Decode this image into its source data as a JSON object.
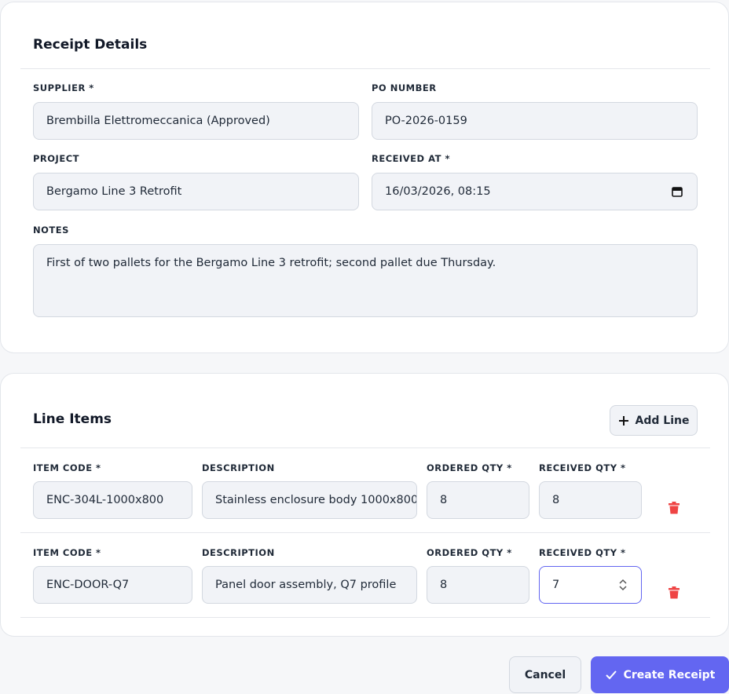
{
  "receipt_details": {
    "title": "Receipt Details",
    "fields": [
      {
        "label": "SUPPLIER *",
        "value": "Brembilla Elettromeccanica (Approved)"
      },
      {
        "label": "PO NUMBER",
        "value": "PO-2026-0159"
      },
      {
        "label": "PROJECT",
        "value": "Bergamo Line 3 Retrofit"
      },
      {
        "label": "RECEIVED AT *",
        "value": "16/03/2026, 08:15"
      }
    ],
    "notes": {
      "label": "NOTES",
      "value": "First of two pallets for the Bergamo Line 3 retrofit; second pallet due Thursday."
    }
  },
  "line_items": {
    "title": "Line Items",
    "add_button": "Add Line",
    "columns": [
      "ITEM CODE *",
      "DESCRIPTION",
      "ORDERED QTY *",
      "RECEIVED QTY *"
    ],
    "rows": [
      [
        "ENC-304L-1000x800",
        "Stainless enclosure body 1000x800",
        8,
        8
      ],
      [
        "ENC-DOOR-Q7",
        "Panel door assembly, Q7 profile",
        8,
        7
      ]
    ]
  },
  "actions": {
    "cancel": "Cancel",
    "submit": "Create Receipt"
  }
}
